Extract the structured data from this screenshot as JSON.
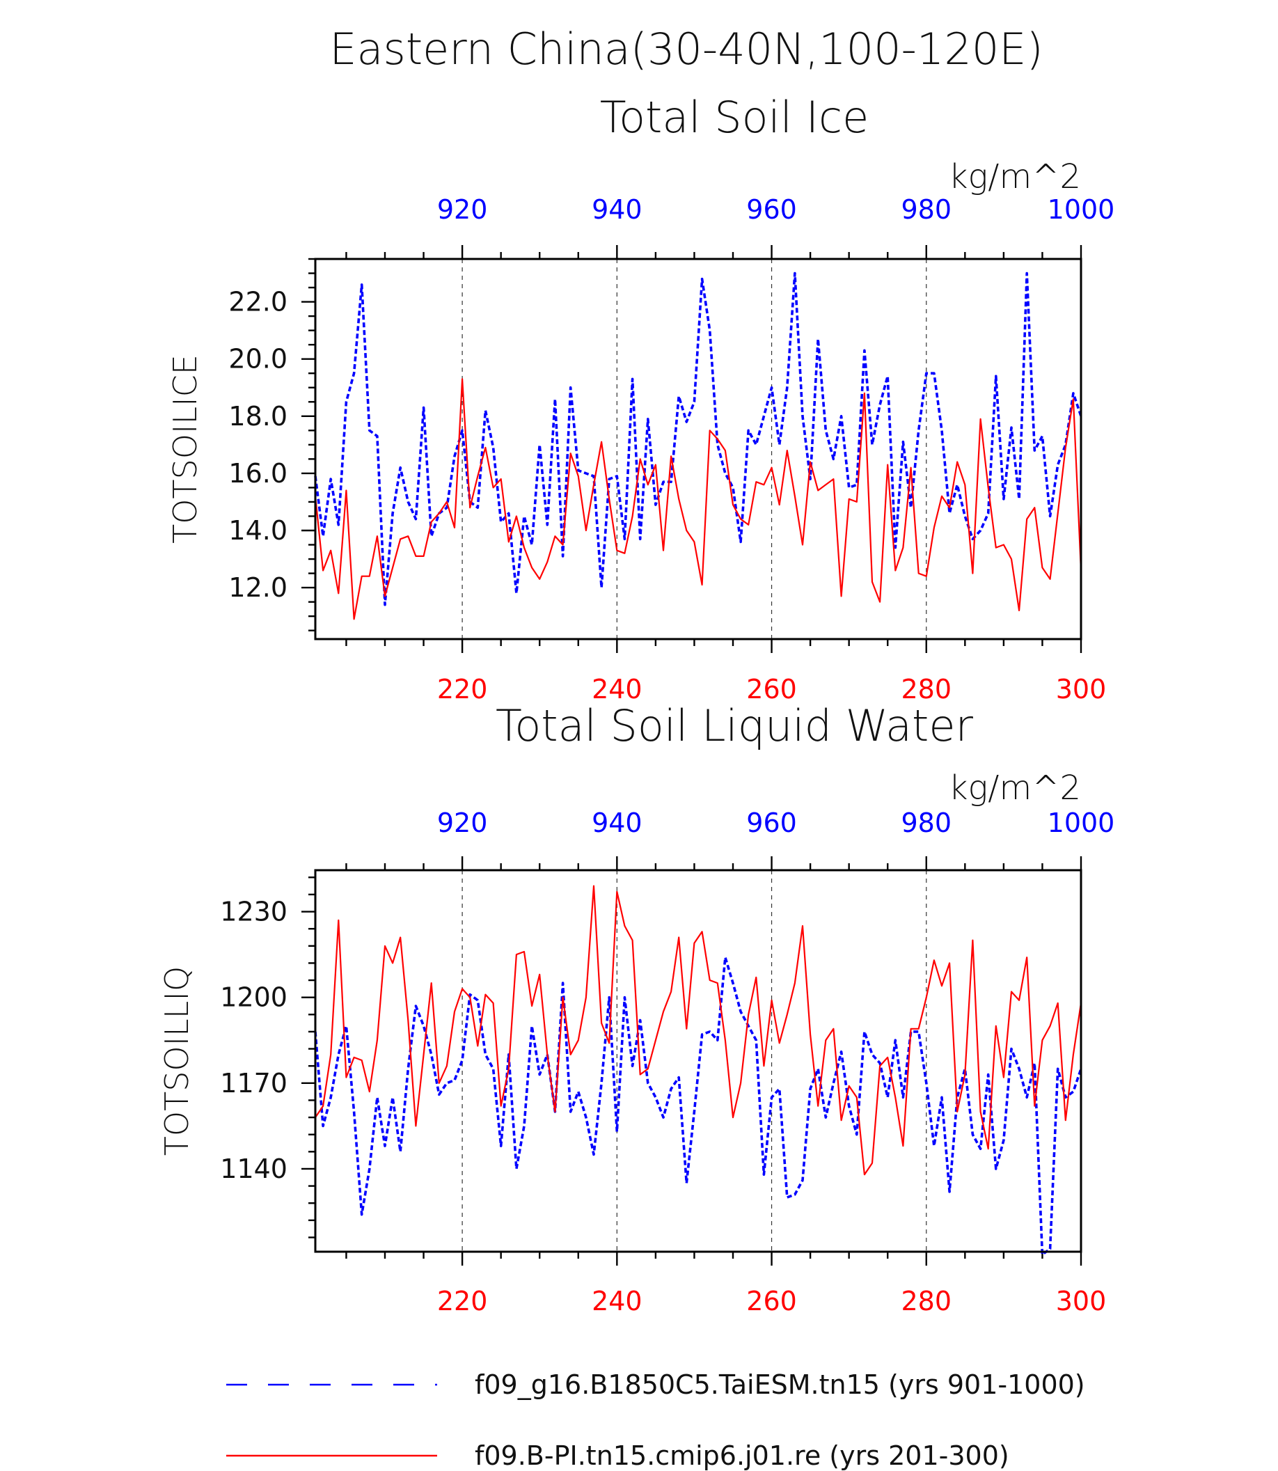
{
  "title": "Eastern China(30-40N,100-120E)",
  "colors": {
    "model_a": "#0000ff",
    "model_b": "#ff0000",
    "axis": "#000000"
  },
  "legend": [
    {
      "label": "f09_g16.B1850C5.TaiESM.tn15 (yrs 901-1000)",
      "style": "dashed",
      "color": "#0000ff"
    },
    {
      "label": "f09.B-PI.tn15.cmip6.j01.re (yrs 201-300)",
      "style": "solid",
      "color": "#ff0000"
    }
  ],
  "chart_data": [
    {
      "type": "line",
      "title": "Total Soil Ice",
      "ylabel": "TOTSOILICE",
      "units": "kg/m^2",
      "ylim": [
        10.2,
        23.5
      ],
      "yticks": [
        "12.0",
        "14.0",
        "16.0",
        "18.0",
        "20.0",
        "22.0"
      ],
      "x_bottom": {
        "range": [
          201,
          300
        ],
        "ticks": [
          "220",
          "240",
          "260",
          "280",
          "300"
        ]
      },
      "x_top": {
        "range": [
          901,
          1000
        ],
        "ticks": [
          "920",
          "940",
          "960",
          "980",
          "1000"
        ]
      },
      "series": [
        {
          "axis": "top",
          "style": "dashed",
          "values": [
            15.9,
            13.8,
            15.8,
            14.2,
            18.5,
            19.5,
            22.6,
            17.5,
            17.3,
            11.4,
            14.6,
            16.2,
            15.0,
            14.4,
            18.3,
            13.8,
            14.6,
            14.8,
            16.6,
            17.5,
            15.0,
            14.8,
            18.2,
            16.9,
            14.3,
            14.6,
            11.8,
            14.5,
            13.5,
            17.0,
            14.2,
            18.6,
            13.1,
            19.0,
            16.1,
            16.0,
            15.9,
            12.0,
            15.8,
            15.9,
            13.7,
            19.3,
            13.7,
            17.9,
            14.9,
            15.7,
            15.7,
            18.7,
            17.8,
            18.5,
            22.8,
            21.0,
            17.0,
            16.0,
            15.5,
            13.6,
            17.5,
            17.0,
            18.0,
            19.0,
            17.0,
            19.0,
            23.0,
            18.0,
            15.8,
            20.7,
            17.5,
            16.5,
            18.0,
            15.5,
            15.6,
            20.3,
            17.0,
            18.4,
            19.4,
            13.4,
            17.1,
            14.8,
            17.5,
            19.5,
            19.5,
            17.5,
            14.6,
            15.6,
            14.5,
            13.7,
            14.0,
            14.6,
            19.4,
            15.1,
            17.6,
            15.1,
            23.0,
            16.8,
            17.3,
            14.5,
            16.3,
            17.0,
            18.8,
            18.0
          ]
        },
        {
          "axis": "bottom",
          "style": "solid",
          "values": [
            15.2,
            12.6,
            13.3,
            11.8,
            15.4,
            10.9,
            12.4,
            12.4,
            13.8,
            11.7,
            12.7,
            13.7,
            13.8,
            13.1,
            13.1,
            14.3,
            14.6,
            15.0,
            14.1,
            19.3,
            14.8,
            15.9,
            16.9,
            15.5,
            15.8,
            13.6,
            14.5,
            13.4,
            12.7,
            12.3,
            12.9,
            13.8,
            13.5,
            16.7,
            15.9,
            14.0,
            15.6,
            17.1,
            15.1,
            13.3,
            13.2,
            14.5,
            16.5,
            15.6,
            16.3,
            13.3,
            16.6,
            15.1,
            14.0,
            13.6,
            12.1,
            17.5,
            17.2,
            16.8,
            14.9,
            14.4,
            14.2,
            15.7,
            15.6,
            16.2,
            14.9,
            16.8,
            15.2,
            13.5,
            16.4,
            15.4,
            15.6,
            15.8,
            11.7,
            15.1,
            15.0,
            18.8,
            12.2,
            11.5,
            16.3,
            12.6,
            13.4,
            16.2,
            12.5,
            12.4,
            14.1,
            15.2,
            14.8,
            16.4,
            15.6,
            12.5,
            17.9,
            15.5,
            13.4,
            13.5,
            13.0,
            11.2,
            14.4,
            14.8,
            12.7,
            12.3,
            14.6,
            16.9,
            18.6,
            12.6
          ]
        }
      ]
    },
    {
      "type": "line",
      "title": "Total Soil Liquid Water",
      "ylabel": "TOTSOILLIQ",
      "units": "kg/m^2",
      "ylim": [
        1111,
        1244.5
      ],
      "yticks": [
        "1140",
        "1170",
        "1200",
        "1230"
      ],
      "x_bottom": {
        "range": [
          201,
          300
        ],
        "ticks": [
          "220",
          "240",
          "260",
          "280",
          "300"
        ]
      },
      "x_top": {
        "range": [
          901,
          1000
        ],
        "ticks": [
          "920",
          "940",
          "960",
          "980",
          "1000"
        ]
      },
      "series": [
        {
          "axis": "top",
          "style": "dashed",
          "values": [
            1188,
            1155,
            1165,
            1180,
            1190,
            1160,
            1124,
            1140,
            1165,
            1148,
            1165,
            1146,
            1175,
            1197,
            1190,
            1180,
            1166,
            1170,
            1171,
            1178,
            1201,
            1199,
            1180,
            1175,
            1148,
            1180,
            1140,
            1155,
            1190,
            1173,
            1180,
            1160,
            1205,
            1160,
            1167,
            1158,
            1145,
            1170,
            1200,
            1153,
            1200,
            1176,
            1192,
            1170,
            1165,
            1158,
            1168,
            1172,
            1135,
            1160,
            1187,
            1188,
            1185,
            1214,
            1205,
            1195,
            1190,
            1185,
            1138,
            1165,
            1168,
            1130,
            1131,
            1136,
            1168,
            1175,
            1158,
            1170,
            1181,
            1162,
            1152,
            1188,
            1180,
            1177,
            1165,
            1185,
            1165,
            1188,
            1188,
            1170,
            1148,
            1165,
            1132,
            1165,
            1175,
            1152,
            1147,
            1173,
            1140,
            1150,
            1182,
            1175,
            1165,
            1177,
            1110,
            1112,
            1175,
            1165,
            1167,
            1175
          ]
        },
        {
          "axis": "bottom",
          "style": "solid",
          "values": [
            1158,
            1162,
            1180,
            1227,
            1172,
            1179,
            1178,
            1167,
            1185,
            1218,
            1212,
            1221,
            1192,
            1155,
            1180,
            1205,
            1170,
            1176,
            1195,
            1203,
            1200,
            1183,
            1201,
            1198,
            1162,
            1175,
            1215,
            1216,
            1197,
            1208,
            1180,
            1160,
            1200,
            1180,
            1185,
            1200,
            1239,
            1191,
            1184,
            1237,
            1225,
            1220,
            1173,
            1175,
            1185,
            1195,
            1202,
            1221,
            1189,
            1219,
            1223,
            1206,
            1205,
            1185,
            1158,
            1170,
            1194,
            1207,
            1176,
            1199,
            1184,
            1194,
            1205,
            1225,
            1187,
            1162,
            1185,
            1189,
            1157,
            1169,
            1165,
            1138,
            1142,
            1176,
            1179,
            1165,
            1148,
            1189,
            1189,
            1200,
            1213,
            1204,
            1212,
            1160,
            1173,
            1220,
            1160,
            1147,
            1190,
            1172,
            1202,
            1199,
            1214,
            1162,
            1185,
            1190,
            1198,
            1157,
            1180,
            1198
          ]
        }
      ]
    }
  ]
}
